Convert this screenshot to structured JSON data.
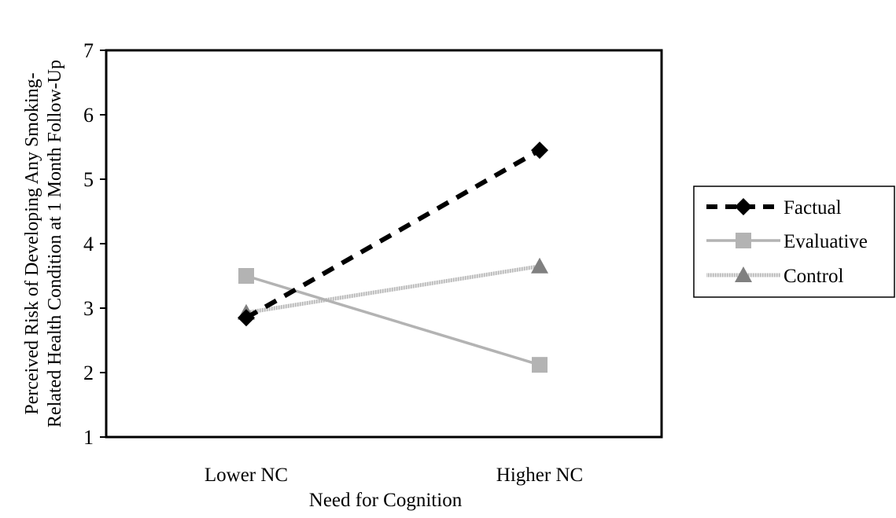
{
  "chart_data": {
    "type": "line",
    "title": "",
    "xlabel": "Need for Cognition",
    "ylabel_lines": [
      "Perceived Risk of Developing Any Smoking-",
      "Related Health Condition at 1 Month Follow-Up"
    ],
    "categories": [
      "Lower NC",
      "Higher NC"
    ],
    "ylim": [
      1,
      7
    ],
    "yticks": [
      1,
      2,
      3,
      4,
      5,
      6,
      7
    ],
    "grid": false,
    "legend_position": "right",
    "series": [
      {
        "name": "Factual",
        "values": [
          2.85,
          5.45
        ],
        "color": "#000000",
        "line_style": "dashed",
        "marker": "diamond"
      },
      {
        "name": "Evaluative",
        "values": [
          3.5,
          2.12
        ],
        "color": "#b3b3b3",
        "line_style": "solid",
        "marker": "square"
      },
      {
        "name": "Control",
        "values": [
          2.93,
          3.65
        ],
        "color": "#d0d0d0",
        "line_style": "hatched",
        "marker": "triangle",
        "marker_color": "#808080"
      }
    ]
  }
}
